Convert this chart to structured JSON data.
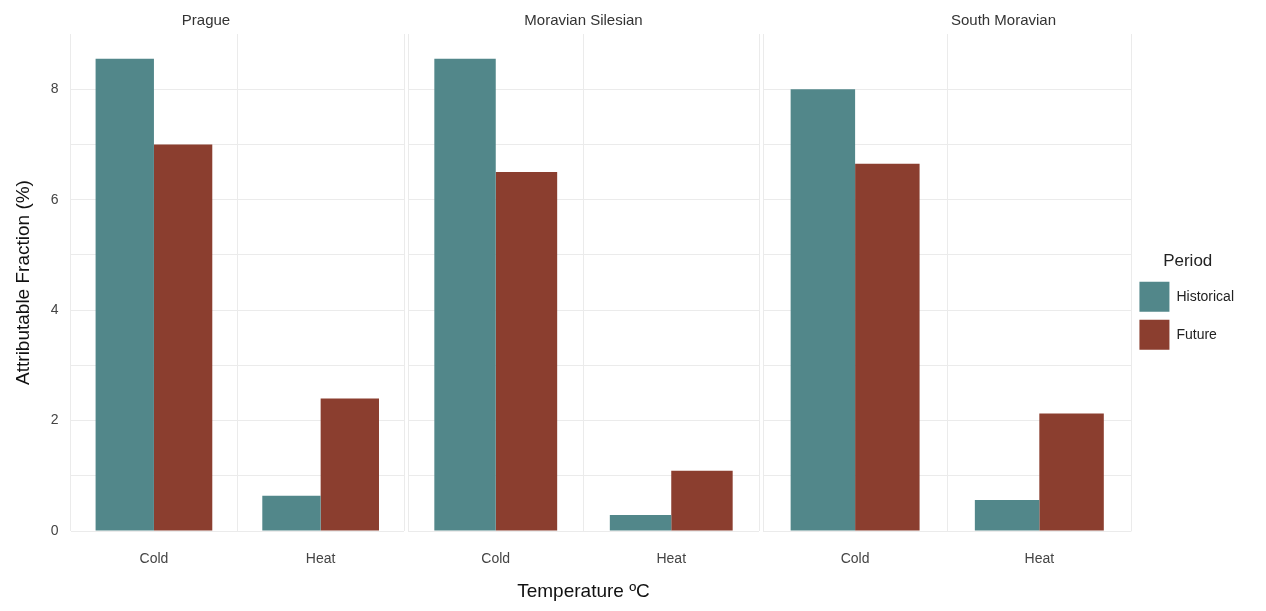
{
  "chart_data": [
    {
      "type": "bar",
      "title": "Prague",
      "ylabel": "Attributable Fraction (%)",
      "categories": [
        "Cold",
        "Heat"
      ],
      "series": [
        {
          "color": "#52878a",
          "values": [
            8.55,
            0.64
          ]
        },
        {
          "color": "#8b3e2f",
          "values": [
            7.0,
            2.4
          ]
        }
      ],
      "ylim": [
        0,
        9
      ],
      "yticks": [
        0,
        {
          "value": 1,
          "label": null
        },
        2,
        {
          "value": 3,
          "label": null
        },
        4,
        {
          "value": 5,
          "label": null
        },
        6,
        {
          "value": 7,
          "label": null
        },
        8
      ],
      "grid": true
    },
    {
      "type": "bar",
      "title": "Moravian Silesian",
      "xlabel": "Temperature ºC",
      "categories": [
        "Cold",
        "Heat"
      ],
      "series": [
        {
          "color": "#52878a",
          "values": [
            8.55,
            0.29
          ]
        },
        {
          "color": "#8b3e2f",
          "values": [
            6.5,
            1.09
          ]
        }
      ],
      "ylim": [
        0,
        9
      ],
      "yticks": [
        0,
        {
          "value": 1,
          "label": null
        },
        2,
        {
          "value": 3,
          "label": null
        },
        4,
        {
          "value": 5,
          "label": null
        },
        6,
        {
          "value": 7,
          "label": null
        },
        8
      ],
      "grid": true,
      "tick_labels": "x"
    },
    {
      "type": "bar",
      "title": "South Moravian",
      "legend_title": "Period",
      "legend": "right",
      "categories": [
        "Cold",
        "Heat"
      ],
      "series": [
        {
          "name": "Historical",
          "color": "#52878a",
          "values": [
            8.0,
            0.56
          ]
        },
        {
          "name": "Future",
          "color": "#8b3e2f",
          "values": [
            6.65,
            2.13
          ]
        }
      ],
      "ylim": [
        0,
        9
      ],
      "yticks": [
        0,
        {
          "value": 1,
          "label": null
        },
        2,
        {
          "value": 3,
          "label": null
        },
        4,
        {
          "value": 5,
          "label": null
        },
        6,
        {
          "value": 7,
          "label": null
        },
        8
      ],
      "grid": true,
      "tick_labels": "x"
    }
  ]
}
